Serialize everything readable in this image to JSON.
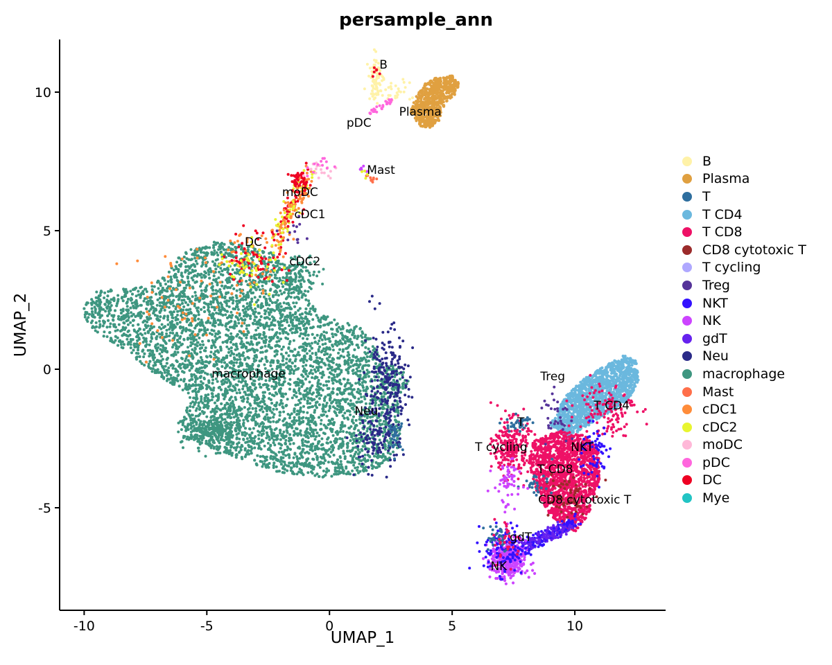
{
  "chart_data": {
    "type": "scatter",
    "title": "persample_ann",
    "xlabel": "UMAP_1",
    "ylabel": "UMAP_2",
    "xlim": [
      -11,
      13.7
    ],
    "ylim": [
      -8.7,
      11.9
    ],
    "xticks": [
      -10,
      -5,
      0,
      5,
      10
    ],
    "yticks": [
      -5,
      0,
      5,
      10
    ],
    "grid": false,
    "legend_position": "right",
    "legend": [
      {
        "name": "B",
        "color": "#FFF2A8"
      },
      {
        "name": "Plasma",
        "color": "#E0A040"
      },
      {
        "name": "T",
        "color": "#2E6E9E"
      },
      {
        "name": "T CD4",
        "color": "#6BB8DE"
      },
      {
        "name": "T CD8",
        "color": "#EE1166"
      },
      {
        "name": "CD8 cytotoxic T",
        "color": "#9B2B2B"
      },
      {
        "name": "T cycling",
        "color": "#AFA8FF"
      },
      {
        "name": "Treg",
        "color": "#553399"
      },
      {
        "name": "NKT",
        "color": "#3311FF"
      },
      {
        "name": "NK",
        "color": "#CC44FF"
      },
      {
        "name": "gdT",
        "color": "#6622EE"
      },
      {
        "name": "Neu",
        "color": "#2A2A88"
      },
      {
        "name": "macrophage",
        "color": "#3E9680"
      },
      {
        "name": "Mast",
        "color": "#FF6F4A"
      },
      {
        "name": "cDC1",
        "color": "#FF8C3A"
      },
      {
        "name": "cDC2",
        "color": "#E8F530"
      },
      {
        "name": "moDC",
        "color": "#FFB8D8"
      },
      {
        "name": "pDC",
        "color": "#FF66DD"
      },
      {
        "name": "DC",
        "color": "#EE0022"
      },
      {
        "name": "Mye",
        "color": "#22C4C4"
      }
    ],
    "cluster_labels": [
      {
        "text": "B",
        "x": 2.2,
        "y": 11.0
      },
      {
        "text": "Plasma",
        "x": 3.7,
        "y": 9.3
      },
      {
        "text": "pDC",
        "x": 1.2,
        "y": 8.9
      },
      {
        "text": "Mast",
        "x": 2.1,
        "y": 7.2
      },
      {
        "text": "moDC",
        "x": -1.2,
        "y": 6.4
      },
      {
        "text": "cDC1",
        "x": -0.8,
        "y": 5.6
      },
      {
        "text": "DC",
        "x": -3.1,
        "y": 4.6
      },
      {
        "text": "cDC2",
        "x": -1.0,
        "y": 3.9
      },
      {
        "text": "macrophage",
        "x": -3.3,
        "y": -0.15
      },
      {
        "text": "Neu",
        "x": 1.5,
        "y": -1.5
      },
      {
        "text": "Treg",
        "x": 9.1,
        "y": -0.25
      },
      {
        "text": "T CD4",
        "x": 11.5,
        "y": -1.3
      },
      {
        "text": "T",
        "x": 7.8,
        "y": -1.9
      },
      {
        "text": "T cycling",
        "x": 7.0,
        "y": -2.8
      },
      {
        "text": "NKT",
        "x": 10.3,
        "y": -2.8
      },
      {
        "text": "T CD8",
        "x": 9.2,
        "y": -3.6
      },
      {
        "text": "CD8 cytotoxic T",
        "x": 10.4,
        "y": -4.7
      },
      {
        "text": "gdT",
        "x": 7.8,
        "y": -6.05
      },
      {
        "text": "NK",
        "x": 6.9,
        "y": -7.1
      }
    ]
  }
}
